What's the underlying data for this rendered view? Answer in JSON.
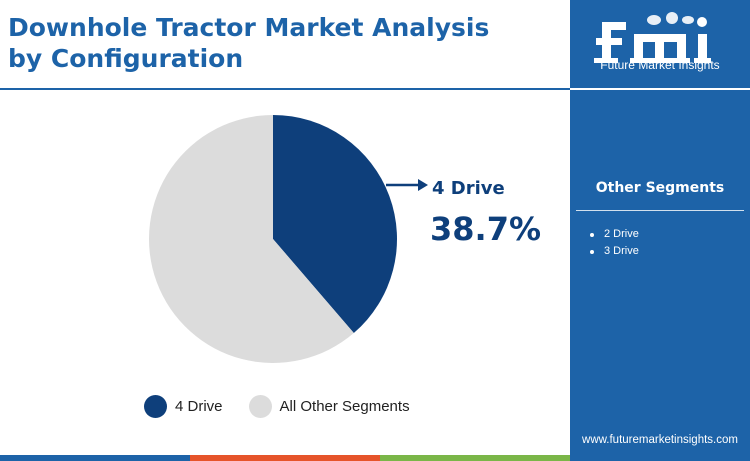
{
  "header": {
    "title": "Downhole Tractor Market Analysis by Configuration"
  },
  "chart_data": {
    "type": "pie",
    "title": "Downhole Tractor Market Analysis by Configuration",
    "slices": [
      {
        "label": "4 Drive",
        "value": 38.7,
        "color": "#0e3f7b"
      },
      {
        "label": "All Other Segments",
        "value": 61.3,
        "color": "#dcdcdc"
      }
    ],
    "callout": {
      "label": "4 Drive",
      "value_text": "38.7%"
    },
    "legend": {
      "placement": "bottom",
      "entries": [
        {
          "label": "4 Drive",
          "color": "#0e3f7b"
        },
        {
          "label": "All Other Segments",
          "color": "#dcdcdc"
        }
      ]
    }
  },
  "sidebar": {
    "logo_text": "Future Market Insights",
    "other_segments_title": "Other Segments",
    "other_segments": [
      "2 Drive",
      "3 Drive"
    ],
    "website": "www.futuremarketinsights.com"
  },
  "colors": {
    "brand_blue": "#1d63a8",
    "dark_blue": "#0e3f7b",
    "bottom_bar": [
      "#1d63a8",
      "#e6542a",
      "#7ab648"
    ]
  }
}
